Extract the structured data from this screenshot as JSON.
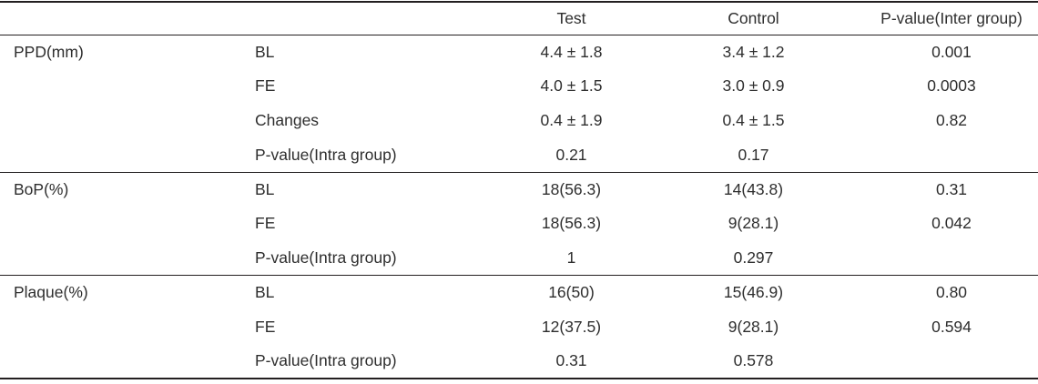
{
  "table": {
    "headers": {
      "col3": "Test",
      "col4": "Control",
      "col5": "P-value(Inter group)"
    },
    "sections": [
      {
        "label": "PPD(mm)",
        "rows": [
          {
            "measure": "BL",
            "test": "4.4 ± 1.8",
            "control": "3.4 ± 1.2",
            "p_inter": "0.001"
          },
          {
            "measure": "FE",
            "test": "4.0 ± 1.5",
            "control": "3.0 ± 0.9",
            "p_inter": "0.0003"
          },
          {
            "measure": "Changes",
            "test": "0.4 ± 1.9",
            "control": "0.4 ± 1.5",
            "p_inter": "0.82"
          },
          {
            "measure": "P-value(Intra group)",
            "test": "0.21",
            "control": "0.17",
            "p_inter": ""
          }
        ]
      },
      {
        "label": "BoP(%)",
        "rows": [
          {
            "measure": "BL",
            "test": "18(56.3)",
            "control": "14(43.8)",
            "p_inter": "0.31"
          },
          {
            "measure": "FE",
            "test": "18(56.3)",
            "control": "9(28.1)",
            "p_inter": "0.042"
          },
          {
            "measure": "P-value(Intra group)",
            "test": "1",
            "control": "0.297",
            "p_inter": ""
          }
        ]
      },
      {
        "label": "Plaque(%)",
        "rows": [
          {
            "measure": "BL",
            "test": "16(50)",
            "control": "15(46.9)",
            "p_inter": "0.80"
          },
          {
            "measure": "FE",
            "test": "12(37.5)",
            "control": "9(28.1)",
            "p_inter": "0.594"
          },
          {
            "measure": "P-value(Intra group)",
            "test": "0.31",
            "control": "0.578",
            "p_inter": ""
          }
        ]
      }
    ]
  },
  "colors": {
    "text": "#2e2e2e",
    "rule": "#231f20",
    "background": "#ffffff"
  }
}
